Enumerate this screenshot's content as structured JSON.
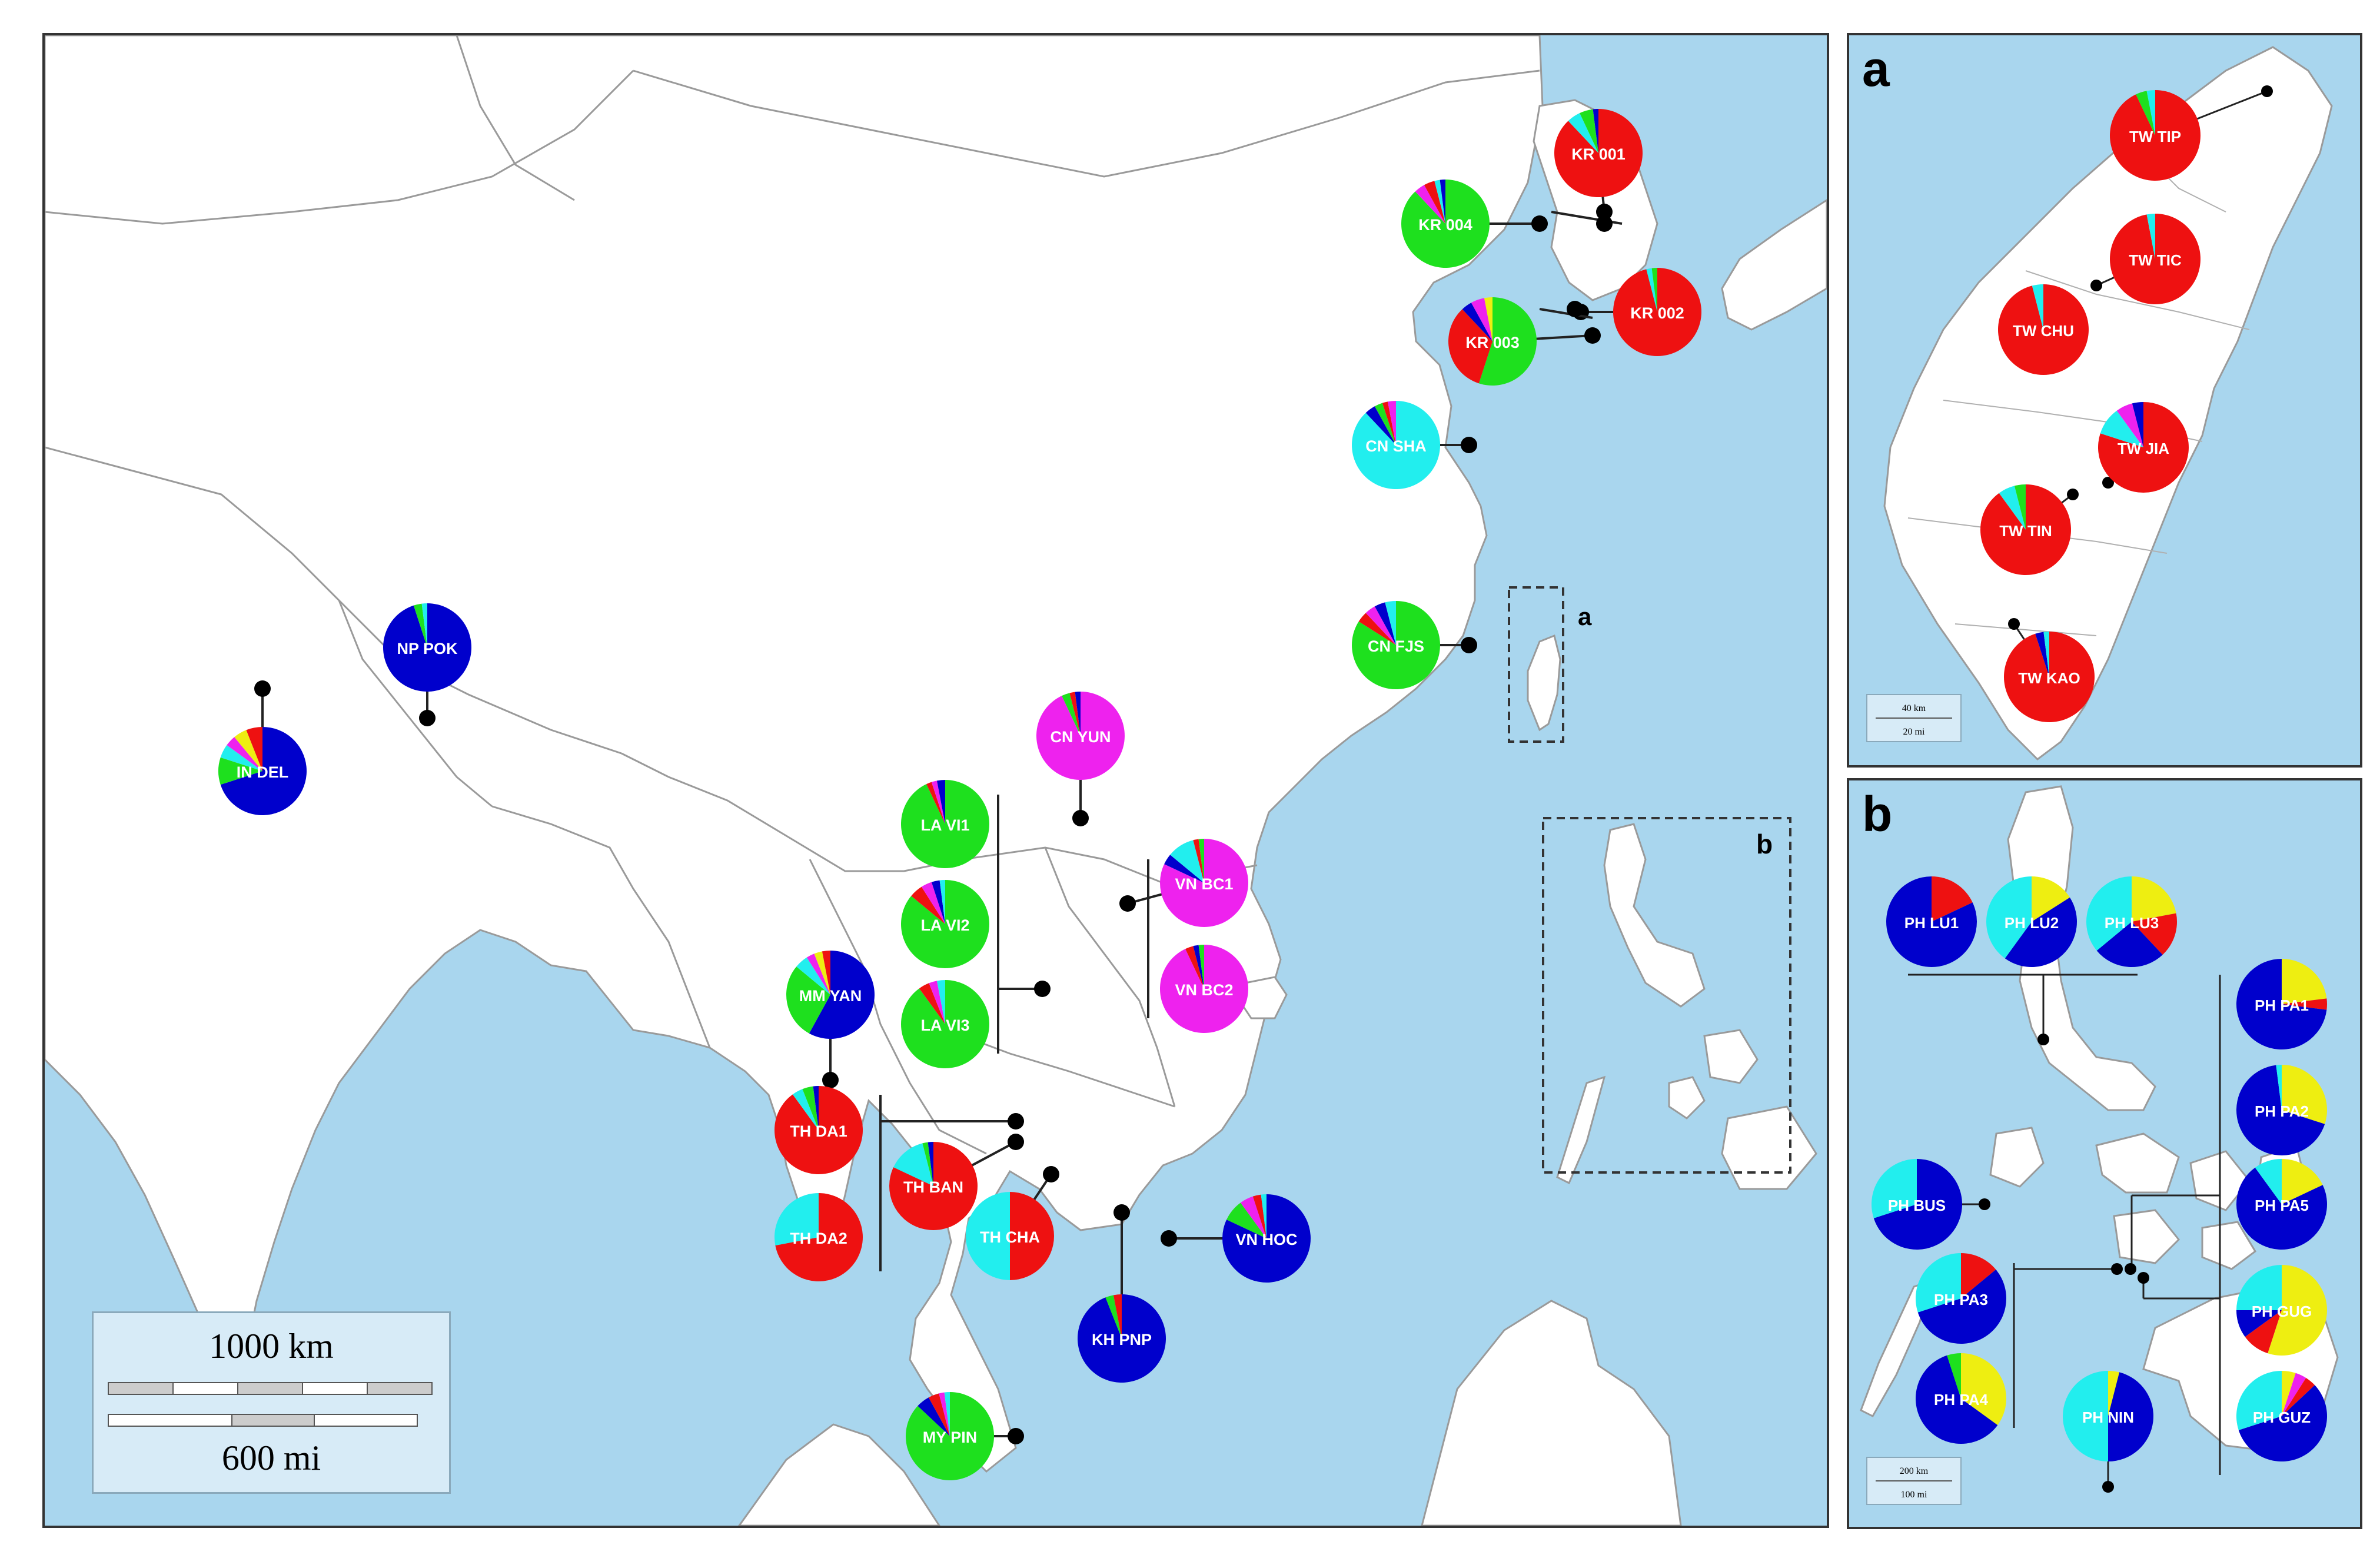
{
  "colors": {
    "sea": "#a9d6ee",
    "land": "#ffffff",
    "border": "#9a9a9a",
    "dark_blue": "#0000cc",
    "green": "#1ee01e",
    "red": "#ee1111",
    "cyan": "#22eeee",
    "magenta": "#ee22ee",
    "yellow": "#eeee11",
    "light_red": "#f05050"
  },
  "main_map": {
    "scale_bar": {
      "km_label": "1000 km",
      "mi_label": "600 mi"
    },
    "inset_markers": [
      {
        "label": "a"
      },
      {
        "label": "b"
      }
    ],
    "sites": [
      {
        "label": "KR 001",
        "composition": {
          "red": 0.88,
          "cyan": 0.05,
          "green": 0.05,
          "dark_blue": 0.02
        }
      },
      {
        "label": "KR 004",
        "composition": {
          "green": 0.88,
          "magenta": 0.04,
          "red": 0.04,
          "cyan": 0.02,
          "dark_blue": 0.02
        }
      },
      {
        "label": "KR 002",
        "composition": {
          "red": 0.96,
          "cyan": 0.02,
          "green": 0.02
        }
      },
      {
        "label": "KR 003",
        "composition": {
          "green": 0.55,
          "red": 0.33,
          "dark_blue": 0.04,
          "magenta": 0.05,
          "yellow": 0.03
        }
      },
      {
        "label": "CN SHA",
        "composition": {
          "cyan": 0.88,
          "dark_blue": 0.04,
          "green": 0.03,
          "red": 0.02,
          "magenta": 0.03
        }
      },
      {
        "label": "CN FJS",
        "composition": {
          "green": 0.84,
          "red": 0.04,
          "magenta": 0.04,
          "dark_blue": 0.04,
          "cyan": 0.04
        }
      },
      {
        "label": "NP POK",
        "composition": {
          "dark_blue": 0.95,
          "green": 0.03,
          "cyan": 0.02
        }
      },
      {
        "label": "IN DEL",
        "composition": {
          "dark_blue": 0.7,
          "green": 0.1,
          "cyan": 0.05,
          "magenta": 0.04,
          "yellow": 0.05,
          "red": 0.06
        }
      },
      {
        "label": "CN YUN",
        "composition": {
          "magenta": 0.93,
          "green": 0.03,
          "red": 0.02,
          "dark_blue": 0.02
        }
      },
      {
        "label": "LA VI1",
        "composition": {
          "green": 0.93,
          "red": 0.02,
          "magenta": 0.02,
          "dark_blue": 0.03
        }
      },
      {
        "label": "LA VI2",
        "composition": {
          "green": 0.86,
          "red": 0.05,
          "magenta": 0.04,
          "dark_blue": 0.03,
          "cyan": 0.02
        }
      },
      {
        "label": "LA VI3",
        "composition": {
          "green": 0.9,
          "red": 0.04,
          "magenta": 0.03,
          "cyan": 0.03
        }
      },
      {
        "label": "VN BC1",
        "composition": {
          "magenta": 0.82,
          "dark_blue": 0.04,
          "cyan": 0.1,
          "red": 0.02,
          "green": 0.02
        }
      },
      {
        "label": "VN BC2",
        "composition": {
          "magenta": 0.93,
          "red": 0.03,
          "dark_blue": 0.02,
          "green": 0.02
        }
      },
      {
        "label": "MM YAN",
        "composition": {
          "dark_blue": 0.58,
          "green": 0.28,
          "cyan": 0.05,
          "magenta": 0.03,
          "yellow": 0.03,
          "red": 0.03
        }
      },
      {
        "label": "TH DA1",
        "composition": {
          "red": 0.9,
          "cyan": 0.04,
          "green": 0.04,
          "dark_blue": 0.02
        }
      },
      {
        "label": "TH DA2",
        "composition": {
          "red": 0.72,
          "cyan": 0.28
        }
      },
      {
        "label": "TH BAN",
        "composition": {
          "red": 0.82,
          "cyan": 0.14,
          "green": 0.02,
          "dark_blue": 0.02
        }
      },
      {
        "label": "TH CHA",
        "composition": {
          "red": 0.5,
          "cyan": 0.5
        }
      },
      {
        "label": "VN HOC",
        "composition": {
          "dark_blue": 0.82,
          "green": 0.08,
          "magenta": 0.05,
          "red": 0.03,
          "cyan": 0.02
        }
      },
      {
        "label": "KH PNP",
        "composition": {
          "dark_blue": 0.94,
          "green": 0.03,
          "red": 0.03
        }
      },
      {
        "label": "MY PIN",
        "composition": {
          "green": 0.87,
          "dark_blue": 0.05,
          "red": 0.04,
          "magenta": 0.02,
          "cyan": 0.02
        }
      }
    ]
  },
  "panel_a": {
    "letter": "a",
    "scale": {
      "km": "40 km",
      "mi": "20 mi"
    },
    "sites": [
      {
        "label": "TW TIP",
        "composition": {
          "red": 0.93,
          "green": 0.04,
          "cyan": 0.03
        }
      },
      {
        "label": "TW TIC",
        "composition": {
          "red": 0.97,
          "cyan": 0.03
        }
      },
      {
        "label": "TW CHU",
        "composition": {
          "red": 0.96,
          "cyan": 0.04
        }
      },
      {
        "label": "TW JIA",
        "composition": {
          "red": 0.8,
          "cyan": 0.1,
          "magenta": 0.06,
          "dark_blue": 0.04
        }
      },
      {
        "label": "TW TIN",
        "composition": {
          "red": 0.9,
          "cyan": 0.06,
          "green": 0.04
        }
      },
      {
        "label": "TW KAO",
        "composition": {
          "red": 0.95,
          "dark_blue": 0.03,
          "cyan": 0.02
        }
      }
    ]
  },
  "panel_b": {
    "letter": "b",
    "scale": {
      "km": "200 km",
      "mi": "100 mi"
    },
    "sites": [
      {
        "label": "PH LU1",
        "composition": {
          "red": 0.18,
          "dark_blue": 0.82
        }
      },
      {
        "label": "PH LU2",
        "composition": {
          "yellow": 0.16,
          "dark_blue": 0.44,
          "cyan": 0.4
        }
      },
      {
        "label": "PH LU3",
        "composition": {
          "yellow": 0.22,
          "red": 0.16,
          "dark_blue": 0.26,
          "cyan": 0.36
        }
      },
      {
        "label": "PH PA1",
        "composition": {
          "yellow": 0.23,
          "red": 0.04,
          "dark_blue": 0.73
        }
      },
      {
        "label": "PH PA2",
        "composition": {
          "yellow": 0.3,
          "dark_blue": 0.68,
          "cyan": 0.02
        }
      },
      {
        "label": "PH BUS",
        "composition": {
          "dark_blue": 0.7,
          "cyan": 0.3
        }
      },
      {
        "label": "PH PA5",
        "composition": {
          "yellow": 0.18,
          "dark_blue": 0.72,
          "cyan": 0.1
        }
      },
      {
        "label": "PH PA3",
        "composition": {
          "red": 0.14,
          "dark_blue": 0.56,
          "cyan": 0.3
        }
      },
      {
        "label": "PH GUG",
        "composition": {
          "yellow": 0.55,
          "red": 0.1,
          "dark_blue": 0.1,
          "cyan": 0.25
        }
      },
      {
        "label": "PH PA4",
        "composition": {
          "yellow": 0.35,
          "dark_blue": 0.6,
          "green": 0.05
        }
      },
      {
        "label": "PH NIN",
        "composition": {
          "yellow": 0.04,
          "dark_blue": 0.46,
          "cyan": 0.5
        }
      },
      {
        "label": "PH GUZ",
        "composition": {
          "yellow": 0.05,
          "magenta": 0.04,
          "red": 0.04,
          "dark_blue": 0.57,
          "cyan": 0.3
        }
      }
    ]
  }
}
